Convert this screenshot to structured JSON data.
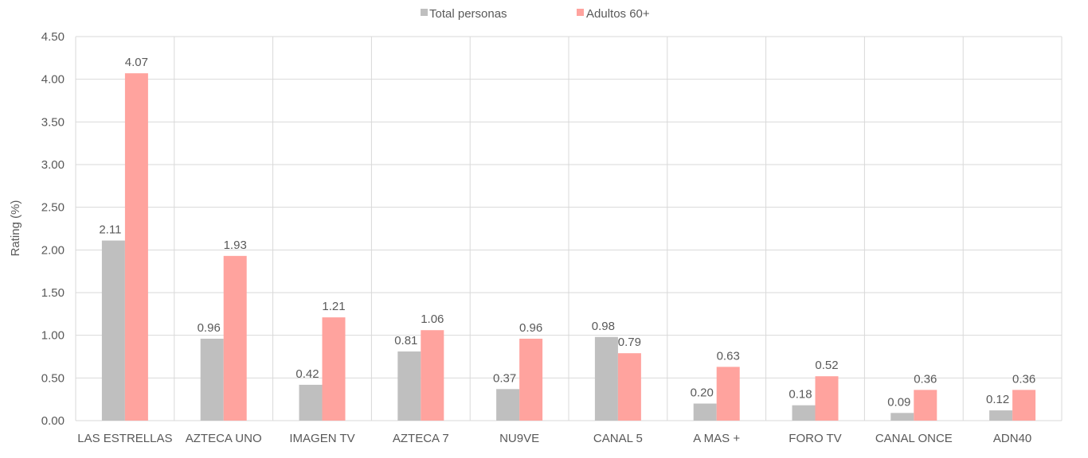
{
  "chart_data": {
    "type": "bar",
    "title": "",
    "xlabel": "",
    "ylabel": "Rating (%)",
    "ylim": [
      0,
      4.5
    ],
    "yticks": [
      "0.00",
      "0.50",
      "1.00",
      "1.50",
      "2.00",
      "2.50",
      "3.00",
      "3.50",
      "4.00",
      "4.50"
    ],
    "grid": true,
    "legend": "top-center",
    "categories": [
      "LAS ESTRELLAS",
      "AZTECA UNO",
      "IMAGEN TV",
      "AZTECA 7",
      "NU9VE",
      "CANAL 5",
      "A MAS +",
      "FORO TV",
      "CANAL ONCE",
      "ADN40"
    ],
    "series": [
      {
        "name": "Total personas",
        "color": "#bfbfbf",
        "values": [
          2.11,
          0.96,
          0.42,
          0.81,
          0.37,
          0.98,
          0.2,
          0.18,
          0.09,
          0.12
        ],
        "labels": [
          "2.11",
          "0.96",
          "0.42",
          "0.81",
          "0.37",
          "0.98",
          "0.20",
          "0.18",
          "0.09",
          "0.12"
        ]
      },
      {
        "name": "Adultos 60+",
        "color": "#ffa39e",
        "values": [
          4.07,
          1.93,
          1.21,
          1.06,
          0.96,
          0.79,
          0.63,
          0.52,
          0.36,
          0.36
        ],
        "labels": [
          "4.07",
          "1.93",
          "1.21",
          "1.06",
          "0.96",
          "0.79",
          "0.63",
          "0.52",
          "0.36",
          "0.36"
        ]
      }
    ]
  }
}
